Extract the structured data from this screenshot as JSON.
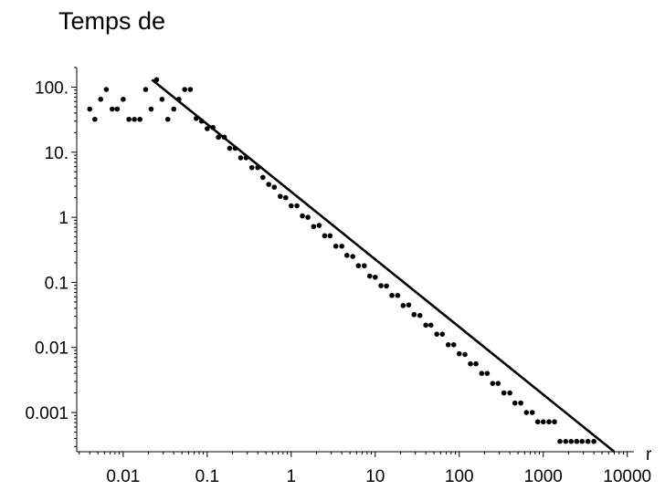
{
  "chart_data": {
    "type": "scatter",
    "title": "Temps de",
    "xlabel": "r",
    "ylabel": "",
    "xscale": "log",
    "yscale": "log",
    "xlim": [
      0.0028,
      12000
    ],
    "ylim": [
      0.00025,
      200
    ],
    "grid": false,
    "x_ticks": [
      {
        "value": 0.01,
        "label": "0.01"
      },
      {
        "value": 0.1,
        "label": "0.1"
      },
      {
        "value": 1,
        "label": "1"
      },
      {
        "value": 10,
        "label": "10"
      },
      {
        "value": 100,
        "label": "100"
      },
      {
        "value": 1000,
        "label": "1000"
      },
      {
        "value": 10000,
        "label": "10000"
      }
    ],
    "y_ticks": [
      {
        "value": 100,
        "label": "100."
      },
      {
        "value": 10,
        "label": "10."
      },
      {
        "value": 1,
        "label": "1"
      },
      {
        "value": 0.1,
        "label": "0.1"
      },
      {
        "value": 0.01,
        "label": "0.01"
      },
      {
        "value": 0.001,
        "label": "0.001"
      }
    ],
    "series": [
      {
        "style": "points",
        "color": "#000000",
        "points": [
          [
            0.004,
            46
          ],
          [
            0.0046,
            32
          ],
          [
            0.0054,
            65
          ],
          [
            0.0063,
            92
          ],
          [
            0.0074,
            46
          ],
          [
            0.0085,
            46
          ],
          [
            0.01,
            65
          ],
          [
            0.0117,
            32
          ],
          [
            0.0136,
            32
          ],
          [
            0.0158,
            32
          ],
          [
            0.0185,
            92
          ],
          [
            0.0215,
            46
          ],
          [
            0.025,
            130
          ],
          [
            0.029,
            65
          ],
          [
            0.034,
            32
          ],
          [
            0.04,
            46
          ],
          [
            0.046,
            65
          ],
          [
            0.054,
            92
          ],
          [
            0.063,
            92
          ],
          [
            0.074,
            33
          ],
          [
            0.086,
            30
          ],
          [
            0.1,
            23
          ],
          [
            0.117,
            24
          ],
          [
            0.136,
            17
          ],
          [
            0.16,
            17
          ],
          [
            0.185,
            11.5
          ],
          [
            0.215,
            11.5
          ],
          [
            0.25,
            8.2
          ],
          [
            0.29,
            8.2
          ],
          [
            0.34,
            5.8
          ],
          [
            0.4,
            5.8
          ],
          [
            0.46,
            4.1
          ],
          [
            0.54,
            3.2
          ],
          [
            0.63,
            2.9
          ],
          [
            0.74,
            2.1
          ],
          [
            0.86,
            2
          ],
          [
            1,
            1.5
          ],
          [
            1.17,
            1.5
          ],
          [
            1.36,
            1.05
          ],
          [
            1.58,
            1
          ],
          [
            1.85,
            0.72
          ],
          [
            2.15,
            0.75
          ],
          [
            2.5,
            0.52
          ],
          [
            2.9,
            0.52
          ],
          [
            3.4,
            0.36
          ],
          [
            4,
            0.36
          ],
          [
            4.6,
            0.26
          ],
          [
            5.4,
            0.25
          ],
          [
            6.3,
            0.18
          ],
          [
            7.4,
            0.18
          ],
          [
            8.6,
            0.125
          ],
          [
            10,
            0.12
          ],
          [
            11.7,
            0.089
          ],
          [
            13.6,
            0.088
          ],
          [
            15.8,
            0.063
          ],
          [
            18.5,
            0.063
          ],
          [
            21.5,
            0.044
          ],
          [
            25,
            0.045
          ],
          [
            29,
            0.032
          ],
          [
            34,
            0.031
          ],
          [
            40,
            0.022
          ],
          [
            46,
            0.022
          ],
          [
            54,
            0.016
          ],
          [
            63,
            0.016
          ],
          [
            74,
            0.011
          ],
          [
            86,
            0.011
          ],
          [
            100,
            0.008
          ],
          [
            117,
            0.0078
          ],
          [
            136,
            0.0056
          ],
          [
            158,
            0.0056
          ],
          [
            185,
            0.004
          ],
          [
            215,
            0.004
          ],
          [
            250,
            0.0028
          ],
          [
            290,
            0.0028
          ],
          [
            340,
            0.002
          ],
          [
            400,
            0.002
          ],
          [
            460,
            0.0014
          ],
          [
            540,
            0.0014
          ],
          [
            630,
            0.001
          ],
          [
            740,
            0.001
          ],
          [
            860,
            0.00072
          ],
          [
            1000,
            0.00072
          ],
          [
            1170,
            0.00072
          ],
          [
            1360,
            0.00072
          ],
          [
            1580,
            0.00036
          ],
          [
            1850,
            0.00036
          ],
          [
            2150,
            0.00036
          ],
          [
            2500,
            0.00036
          ],
          [
            2900,
            0.00036
          ],
          [
            3400,
            0.00036
          ],
          [
            4000,
            0.00036
          ]
        ]
      },
      {
        "style": "line",
        "color": "#000000",
        "points": [
          [
            0.022,
            130
          ],
          [
            7000,
            0.00025
          ]
        ]
      }
    ]
  }
}
